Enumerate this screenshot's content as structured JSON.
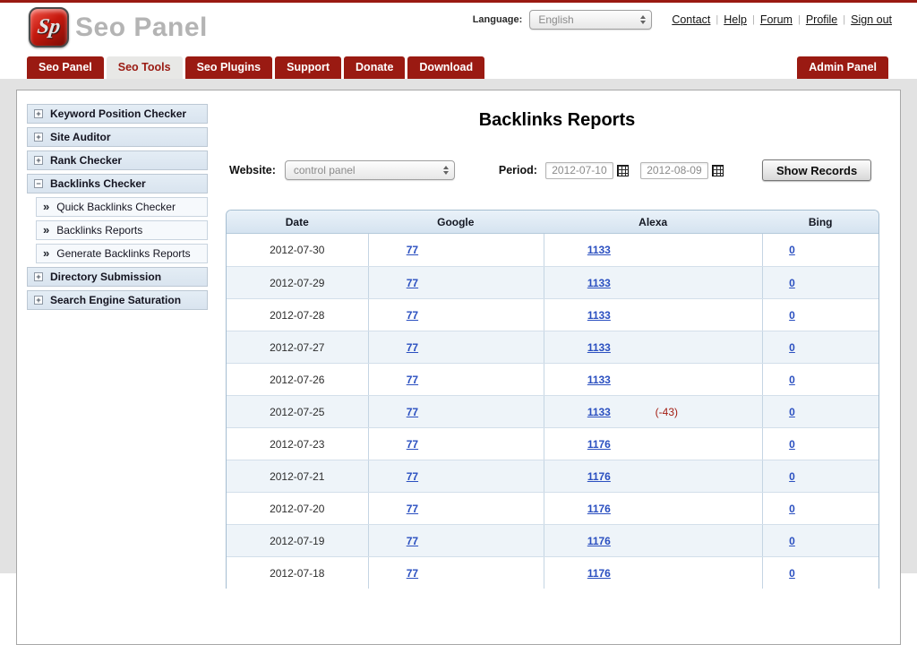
{
  "header": {
    "logo": {
      "text": "Seo Panel",
      "monogram": "Sp"
    },
    "language_label": "Language:",
    "language_value": "English",
    "links": [
      {
        "label": "Contact"
      },
      {
        "label": "Help"
      },
      {
        "label": "Forum"
      },
      {
        "label": "Profile"
      },
      {
        "label": "Sign out"
      }
    ]
  },
  "nav": {
    "tabs": [
      {
        "label": "Seo Panel",
        "active": false
      },
      {
        "label": "Seo Tools",
        "active": true
      },
      {
        "label": "Seo Plugins",
        "active": false
      },
      {
        "label": "Support",
        "active": false
      },
      {
        "label": "Donate",
        "active": false
      },
      {
        "label": "Download",
        "active": false
      }
    ],
    "admin_label": "Admin Panel"
  },
  "sidebar": {
    "items": [
      {
        "label": "Keyword Position Checker",
        "icon": "+",
        "type": "group"
      },
      {
        "label": "Site Auditor",
        "icon": "+",
        "type": "group"
      },
      {
        "label": "Rank Checker",
        "icon": "+",
        "type": "group"
      },
      {
        "label": "Backlinks Checker",
        "icon": "−",
        "type": "group"
      },
      {
        "label": "Quick Backlinks Checker",
        "icon": "»",
        "type": "sub"
      },
      {
        "label": "Backlinks Reports",
        "icon": "»",
        "type": "sub"
      },
      {
        "label": "Generate Backlinks Reports",
        "icon": "»",
        "type": "sub"
      },
      {
        "label": "Directory Submission",
        "icon": "+",
        "type": "group"
      },
      {
        "label": "Search Engine Saturation",
        "icon": "+",
        "type": "group"
      }
    ]
  },
  "main": {
    "title": "Backlinks Reports",
    "filters": {
      "website_label": "Website:",
      "website_value": "control panel",
      "period_label": "Period:",
      "date_from": "2012-07-10",
      "date_to": "2012-08-09",
      "show_records_label": "Show Records"
    },
    "table": {
      "columns": [
        "Date",
        "Google",
        "Alexa",
        "Bing"
      ],
      "rows": [
        {
          "date": "2012-07-30",
          "google": "77",
          "alexa": "1133",
          "bing": "0"
        },
        {
          "date": "2012-07-29",
          "google": "77",
          "alexa": "1133",
          "bing": "0"
        },
        {
          "date": "2012-07-28",
          "google": "77",
          "alexa": "1133",
          "bing": "0"
        },
        {
          "date": "2012-07-27",
          "google": "77",
          "alexa": "1133",
          "bing": "0"
        },
        {
          "date": "2012-07-26",
          "google": "77",
          "alexa": "1133",
          "bing": "0"
        },
        {
          "date": "2012-07-25",
          "google": "77",
          "alexa": "1133",
          "alexa_diff": "(-43)",
          "bing": "0"
        },
        {
          "date": "2012-07-23",
          "google": "77",
          "alexa": "1176",
          "bing": "0"
        },
        {
          "date": "2012-07-21",
          "google": "77",
          "alexa": "1176",
          "bing": "0"
        },
        {
          "date": "2012-07-20",
          "google": "77",
          "alexa": "1176",
          "bing": "0"
        },
        {
          "date": "2012-07-19",
          "google": "77",
          "alexa": "1176",
          "bing": "0"
        },
        {
          "date": "2012-07-18",
          "google": "77",
          "alexa": "1176",
          "bing": "0"
        }
      ]
    }
  },
  "colors": {
    "brand_red": "#9a1a12",
    "link_blue": "#2a4fc0",
    "diff_red": "#a31d12",
    "table_header_blue": "#d5e3f0",
    "sidebar_blue": "#dde7f1",
    "page_gray": "#e2e2e2"
  }
}
